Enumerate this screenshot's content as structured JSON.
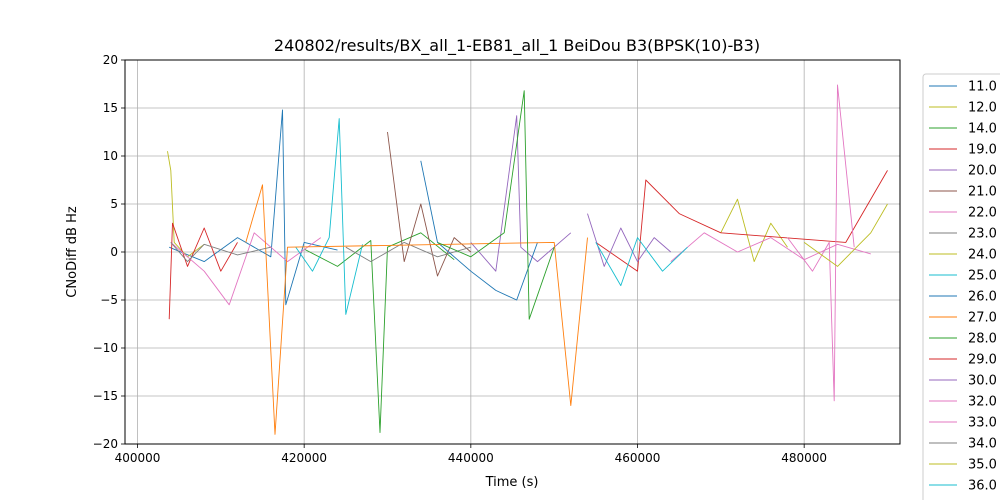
{
  "chart_data": {
    "type": "line",
    "title": "240802/results/BX_all_1-EB81_all_1 BeiDou B3(BPSK(10)-B3)",
    "xlabel": "Time (s)",
    "ylabel": "CNoDiff dB Hz",
    "xlim": [
      398500,
      491500
    ],
    "ylim": [
      -20,
      20
    ],
    "xticks": [
      400000,
      420000,
      440000,
      460000,
      480000
    ],
    "xtick_labels": [
      "400000",
      "420000",
      "440000",
      "460000",
      "480000"
    ],
    "yticks": [
      -20,
      -15,
      -10,
      -5,
      0,
      5,
      10,
      15,
      20
    ],
    "ytick_labels": [
      "−20",
      "−15",
      "−10",
      "−5",
      "0",
      "5",
      "10",
      "15",
      "20"
    ],
    "grid": true,
    "legend_position": "outside-right",
    "series": [
      {
        "name": "11.0",
        "color": "#1f77b4",
        "x": [
          403800,
          408000,
          412000,
          416000,
          417400,
          417800,
          420000,
          424000
        ],
        "y": [
          0.5,
          -1.0,
          1.5,
          -0.5,
          14.8,
          -5.5,
          1.0,
          0.2
        ]
      },
      {
        "name": "12.0",
        "color": "#bcbd22",
        "x": [
          403600,
          404000,
          404400,
          406000,
          408000
        ],
        "y": [
          10.5,
          8.5,
          1.0,
          -0.5,
          0.8
        ]
      },
      {
        "name": "14.0",
        "color": "#2ca02c",
        "x": [
          420000,
          424000,
          428000,
          429100,
          430000,
          434000,
          438000
        ],
        "y": [
          0.3,
          -1.5,
          1.2,
          -18.8,
          0.5,
          2.0,
          -0.8
        ]
      },
      {
        "name": "19.0",
        "color": "#d62728",
        "x": [
          403800,
          404200,
          406000,
          408000,
          410000,
          412000
        ],
        "y": [
          -7.0,
          3.0,
          -1.5,
          2.5,
          -2.0,
          1.0
        ]
      },
      {
        "name": "20.0",
        "color": "#9467bd",
        "x": [
          440000,
          443000,
          445500,
          446000,
          448000,
          452000
        ],
        "y": [
          1.0,
          -2.0,
          14.2,
          0.5,
          -1.0,
          2.0
        ]
      },
      {
        "name": "21.0",
        "color": "#8c564b",
        "x": [
          430000,
          432000,
          434000,
          436000,
          438000,
          440000
        ],
        "y": [
          12.5,
          -1.0,
          5.0,
          -2.5,
          1.5,
          0.0
        ]
      },
      {
        "name": "22.0",
        "color": "#e377c2",
        "x": [
          404000,
          408000,
          411000,
          414000,
          418000,
          422000
        ],
        "y": [
          1.0,
          -2.0,
          -5.5,
          2.0,
          -1.0,
          1.5
        ]
      },
      {
        "name": "23.0",
        "color": "#7f7f7f",
        "x": [
          425000,
          428000,
          432000,
          436000,
          440000
        ],
        "y": [
          0.5,
          -1.0,
          1.0,
          -0.5,
          0.5
        ]
      },
      {
        "name": "24.0",
        "color": "#bcbd22",
        "x": [
          470000,
          472000,
          474000,
          476000,
          478000
        ],
        "y": [
          2.0,
          5.5,
          -1.0,
          3.0,
          0.5
        ]
      },
      {
        "name": "25.0",
        "color": "#17becf",
        "x": [
          419000,
          421000,
          423000,
          424200,
          425000,
          427000
        ],
        "y": [
          0.5,
          -2.0,
          1.5,
          13.9,
          -6.5,
          0.8
        ]
      },
      {
        "name": "26.0",
        "color": "#1f77b4",
        "x": [
          434000,
          436000,
          440000,
          443000,
          445500,
          448000
        ],
        "y": [
          9.5,
          1.0,
          -2.0,
          -4.0,
          -5.0,
          1.0
        ]
      },
      {
        "name": "27.0",
        "color": "#ff7f0e",
        "x": [
          413000,
          415000,
          416500,
          418000,
          450000,
          452000,
          454000
        ],
        "y": [
          1.0,
          7.0,
          -19.0,
          0.5,
          1.0,
          -16.0,
          1.5
        ]
      },
      {
        "name": "28.0",
        "color": "#2ca02c",
        "x": [
          436000,
          440000,
          444000,
          446400,
          447000,
          450000
        ],
        "y": [
          1.0,
          -0.5,
          2.0,
          16.8,
          -7.0,
          0.5
        ]
      },
      {
        "name": "29.0",
        "color": "#d62728",
        "x": [
          455000,
          460000,
          461000,
          465000,
          470000,
          485000,
          490000
        ],
        "y": [
          1.0,
          -2.0,
          7.5,
          4.0,
          2.0,
          1.0,
          8.5
        ]
      },
      {
        "name": "30.0",
        "color": "#9467bd",
        "x": [
          454000,
          456000,
          458000,
          460000,
          462000,
          464000
        ],
        "y": [
          4.0,
          -1.5,
          2.5,
          -1.0,
          1.5,
          0.0
        ]
      },
      {
        "name": "32.0",
        "color": "#e377c2",
        "x": [
          478000,
          481000,
          483000,
          483600,
          484000,
          486000
        ],
        "y": [
          1.5,
          -2.0,
          1.0,
          -15.5,
          17.4,
          0.5
        ]
      },
      {
        "name": "33.0",
        "color": "#e377c2",
        "x": [
          464000,
          468000,
          472000,
          476000,
          480000,
          484000,
          488000
        ],
        "y": [
          -1.0,
          2.0,
          0.0,
          1.5,
          -0.8,
          0.8,
          -0.2
        ]
      },
      {
        "name": "34.0",
        "color": "#7f7f7f",
        "x": [
          404000,
          406000,
          408000,
          412000,
          416000
        ],
        "y": [
          1.0,
          -1.0,
          0.8,
          -0.3,
          0.5
        ]
      },
      {
        "name": "35.0",
        "color": "#bcbd22",
        "x": [
          480000,
          484000,
          488000,
          490000
        ],
        "y": [
          1.0,
          -1.5,
          2.0,
          5.0
        ]
      },
      {
        "name": "36.0",
        "color": "#17becf",
        "x": [
          455000,
          458000,
          460000,
          463000,
          466000
        ],
        "y": [
          1.0,
          -3.5,
          1.5,
          -2.0,
          0.5
        ]
      }
    ]
  }
}
